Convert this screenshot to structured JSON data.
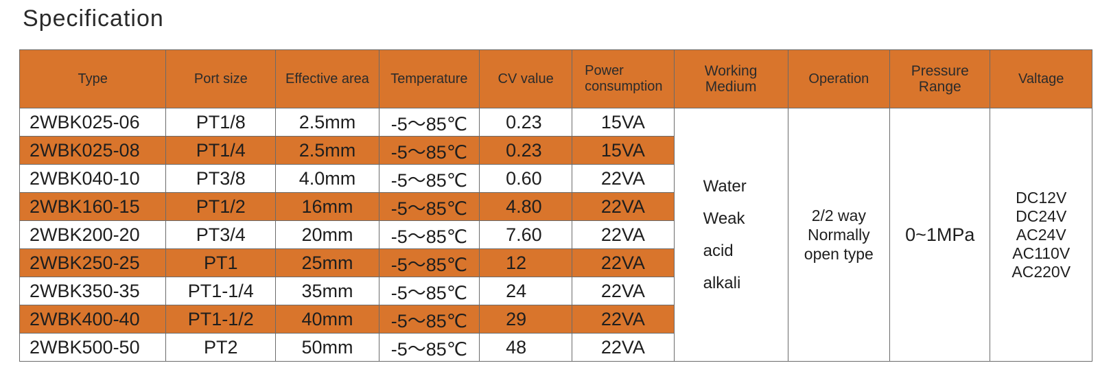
{
  "title": "Specification",
  "headers": {
    "type": "Type",
    "port_size": "Port size",
    "effective_area": "Effective area",
    "temperature": "Temperature",
    "cv_value": "CV value",
    "power_line1": "Power",
    "power_line2": "consumption",
    "medium_line1": "Working",
    "medium_line2": "Medium",
    "operation": "Operation",
    "pressure_line1": "Pressure",
    "pressure_line2": "Range",
    "voltage": "Valtage"
  },
  "rows": [
    {
      "type": "2WBK025-06",
      "port": "PT1/8",
      "area": "2.5mm",
      "temp": "-5～85℃",
      "cv": "0.23",
      "power": "15VA"
    },
    {
      "type": "2WBK025-08",
      "port": "PT1/4",
      "area": "2.5mm",
      "temp": "-5～85℃",
      "cv": "0.23",
      "power": "15VA"
    },
    {
      "type": "2WBK040-10",
      "port": "PT3/8",
      "area": "4.0mm",
      "temp": "-5～85℃",
      "cv": "0.60",
      "power": "22VA"
    },
    {
      "type": "2WBK160-15",
      "port": "PT1/2",
      "area": "16mm",
      "temp": "-5～85℃",
      "cv": "4.80",
      "power": "22VA"
    },
    {
      "type": "2WBK200-20",
      "port": "PT3/4",
      "area": "20mm",
      "temp": "-5～85℃",
      "cv": "7.60",
      "power": "22VA"
    },
    {
      "type": "2WBK250-25",
      "port": "PT1",
      "area": "25mm",
      "temp": "-5～85℃",
      "cv": "12",
      "power": "22VA"
    },
    {
      "type": "2WBK350-35",
      "port": "PT1-1/4",
      "area": "35mm",
      "temp": "-5～85℃",
      "cv": "24",
      "power": "22VA"
    },
    {
      "type": "2WBK400-40",
      "port": "PT1-1/2",
      "area": "40mm",
      "temp": "-5～85℃",
      "cv": "29",
      "power": "22VA"
    },
    {
      "type": "2WBK500-50",
      "port": "PT2",
      "area": "50mm",
      "temp": "-5～85℃",
      "cv": "48",
      "power": "22VA"
    }
  ],
  "shared": {
    "medium": [
      "Water",
      "Weak",
      "acid",
      "alkali"
    ],
    "operation": [
      "2/2 way",
      "Normally",
      "open type"
    ],
    "pressure": "0~1MPa",
    "voltage": [
      "DC12V",
      "DC24V",
      "AC24V",
      "AC110V",
      "AC220V"
    ]
  },
  "colors": {
    "accent_orange": "#d9752c",
    "border": "#6a6a6a"
  }
}
